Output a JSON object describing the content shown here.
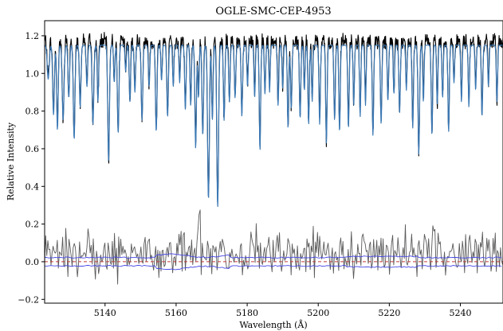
{
  "chart_data": {
    "type": "line",
    "title": "OGLE-SMC-CEP-4953",
    "xlabel": "Wavelength (Å)",
    "ylabel": "Relative Intensity",
    "xlim": [
      5123,
      5252
    ],
    "ylim": [
      -0.22,
      1.28
    ],
    "x_ticks": [
      5140,
      5160,
      5180,
      5200,
      5220,
      5240
    ],
    "x_tick_labels": [
      "5140",
      "5160",
      "5180",
      "5200",
      "5220",
      "5240"
    ],
    "y_ticks": [
      -0.2,
      0.0,
      0.2,
      0.4,
      0.6,
      0.8,
      1.0,
      1.2
    ],
    "y_tick_labels": [
      "−0.2",
      "0.0",
      "0.2",
      "0.4",
      "0.6",
      "0.8",
      "1.0",
      "1.2"
    ],
    "grid": false,
    "legend": "none",
    "continuum": 1.15,
    "absorption_lines": [
      {
        "x": 5124.0,
        "depth": 0.18,
        "width": 0.28
      },
      {
        "x": 5125.5,
        "depth": 0.37,
        "width": 0.24
      },
      {
        "x": 5126.6,
        "depth": 0.45,
        "width": 0.22
      },
      {
        "x": 5128.2,
        "depth": 0.4,
        "width": 0.26
      },
      {
        "x": 5129.8,
        "depth": 0.28,
        "width": 0.22
      },
      {
        "x": 5131.3,
        "depth": 0.5,
        "width": 0.24
      },
      {
        "x": 5133.0,
        "depth": 0.33,
        "width": 0.22
      },
      {
        "x": 5134.9,
        "depth": 0.22,
        "width": 0.2
      },
      {
        "x": 5136.6,
        "depth": 0.42,
        "width": 0.24
      },
      {
        "x": 5138.0,
        "depth": 0.3,
        "width": 0.2
      },
      {
        "x": 5141.0,
        "depth": 0.62,
        "width": 0.24
      },
      {
        "x": 5142.6,
        "depth": 0.2,
        "width": 0.18
      },
      {
        "x": 5143.7,
        "depth": 0.47,
        "width": 0.22
      },
      {
        "x": 5145.8,
        "depth": 0.14,
        "width": 0.18
      },
      {
        "x": 5147.0,
        "depth": 0.3,
        "width": 0.2
      },
      {
        "x": 5148.4,
        "depth": 0.25,
        "width": 0.2
      },
      {
        "x": 5150.4,
        "depth": 0.4,
        "width": 0.22
      },
      {
        "x": 5152.4,
        "depth": 0.22,
        "width": 0.2
      },
      {
        "x": 5154.4,
        "depth": 0.46,
        "width": 0.22
      },
      {
        "x": 5155.9,
        "depth": 0.19,
        "width": 0.18
      },
      {
        "x": 5157.6,
        "depth": 0.38,
        "width": 0.22
      },
      {
        "x": 5159.2,
        "depth": 0.22,
        "width": 0.18
      },
      {
        "x": 5161.0,
        "depth": 0.2,
        "width": 0.18
      },
      {
        "x": 5162.6,
        "depth": 0.34,
        "width": 0.2
      },
      {
        "x": 5164.1,
        "depth": 0.32,
        "width": 0.2
      },
      {
        "x": 5165.5,
        "depth": 0.55,
        "width": 0.22
      },
      {
        "x": 5166.3,
        "depth": 0.28,
        "width": 0.18
      },
      {
        "x": 5167.5,
        "depth": 0.48,
        "width": 0.22
      },
      {
        "x": 5169.1,
        "depth": 0.82,
        "width": 0.25
      },
      {
        "x": 5170.2,
        "depth": 0.4,
        "width": 0.2
      },
      {
        "x": 5171.7,
        "depth": 0.86,
        "width": 0.25
      },
      {
        "x": 5173.5,
        "depth": 0.4,
        "width": 0.2
      },
      {
        "x": 5175.0,
        "depth": 0.3,
        "width": 0.2
      },
      {
        "x": 5176.6,
        "depth": 0.28,
        "width": 0.2
      },
      {
        "x": 5178.5,
        "depth": 0.38,
        "width": 0.2
      },
      {
        "x": 5180.1,
        "depth": 0.22,
        "width": 0.18
      },
      {
        "x": 5182.1,
        "depth": 0.28,
        "width": 0.18
      },
      {
        "x": 5183.6,
        "depth": 0.56,
        "width": 0.2
      },
      {
        "x": 5185.0,
        "depth": 0.26,
        "width": 0.18
      },
      {
        "x": 5186.3,
        "depth": 0.25,
        "width": 0.18
      },
      {
        "x": 5188.7,
        "depth": 0.32,
        "width": 0.2
      },
      {
        "x": 5190.0,
        "depth": 0.23,
        "width": 0.18
      },
      {
        "x": 5191.5,
        "depth": 0.44,
        "width": 0.2
      },
      {
        "x": 5192.4,
        "depth": 0.34,
        "width": 0.2
      },
      {
        "x": 5194.9,
        "depth": 0.39,
        "width": 0.2
      },
      {
        "x": 5196.1,
        "depth": 0.24,
        "width": 0.18
      },
      {
        "x": 5197.3,
        "depth": 0.42,
        "width": 0.2
      },
      {
        "x": 5198.3,
        "depth": 0.3,
        "width": 0.18
      },
      {
        "x": 5200.4,
        "depth": 0.42,
        "width": 0.2
      },
      {
        "x": 5202.3,
        "depth": 0.52,
        "width": 0.2
      },
      {
        "x": 5204.6,
        "depth": 0.4,
        "width": 0.2
      },
      {
        "x": 5206.0,
        "depth": 0.46,
        "width": 0.2
      },
      {
        "x": 5208.5,
        "depth": 0.44,
        "width": 0.2
      },
      {
        "x": 5210.0,
        "depth": 0.32,
        "width": 0.18
      },
      {
        "x": 5211.8,
        "depth": 0.38,
        "width": 0.18
      },
      {
        "x": 5213.3,
        "depth": 0.32,
        "width": 0.18
      },
      {
        "x": 5215.4,
        "depth": 0.48,
        "width": 0.2
      },
      {
        "x": 5217.7,
        "depth": 0.42,
        "width": 0.2
      },
      {
        "x": 5219.6,
        "depth": 0.3,
        "width": 0.18
      },
      {
        "x": 5221.3,
        "depth": 0.26,
        "width": 0.18
      },
      {
        "x": 5222.9,
        "depth": 0.36,
        "width": 0.2
      },
      {
        "x": 5224.8,
        "depth": 0.24,
        "width": 0.18
      },
      {
        "x": 5226.6,
        "depth": 0.44,
        "width": 0.2
      },
      {
        "x": 5228.3,
        "depth": 0.58,
        "width": 0.22
      },
      {
        "x": 5229.6,
        "depth": 0.3,
        "width": 0.18
      },
      {
        "x": 5232.0,
        "depth": 0.48,
        "width": 0.2
      },
      {
        "x": 5233.5,
        "depth": 0.32,
        "width": 0.18
      },
      {
        "x": 5235.0,
        "depth": 0.28,
        "width": 0.18
      },
      {
        "x": 5236.7,
        "depth": 0.46,
        "width": 0.2
      },
      {
        "x": 5238.2,
        "depth": 0.2,
        "width": 0.18
      },
      {
        "x": 5240.3,
        "depth": 0.3,
        "width": 0.18
      },
      {
        "x": 5242.4,
        "depth": 0.33,
        "width": 0.18
      },
      {
        "x": 5244.3,
        "depth": 0.24,
        "width": 0.18
      },
      {
        "x": 5246.1,
        "depth": 0.38,
        "width": 0.2
      },
      {
        "x": 5247.9,
        "depth": 0.22,
        "width": 0.18
      },
      {
        "x": 5250.3,
        "depth": 0.3,
        "width": 0.18
      }
    ],
    "series": [
      {
        "role": "observed",
        "color": "#000000"
      },
      {
        "role": "model",
        "color": "#3b78b4"
      },
      {
        "role": "residual",
        "color": "#5a5a5a"
      },
      {
        "role": "error-upper",
        "color": "#4646e6"
      },
      {
        "role": "error-lower",
        "color": "#4646e6"
      },
      {
        "role": "zero-line",
        "color": "#c23b3b",
        "y": 0.0
      }
    ]
  }
}
